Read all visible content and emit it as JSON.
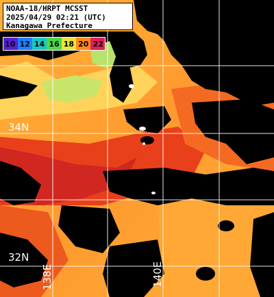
{
  "header": {
    "line1": "NOAA-18/HRPT MCSST",
    "line2": "2025/04/29 02:21 (UTC)",
    "line3": "Kanagawa Prefecture"
  },
  "legend": {
    "ticks": [
      "10",
      "12",
      "14",
      "16",
      "18",
      "20",
      "22"
    ],
    "colors": [
      "#5a1fd0",
      "#1f7fff",
      "#16c8c8",
      "#4cd84c",
      "#e6e63a",
      "#ff8a1a",
      "#e0205a"
    ]
  },
  "grid": {
    "lat_labels": [
      "34N",
      "32N"
    ],
    "lon_labels": [
      "138E",
      "140E"
    ]
  },
  "palette": {
    "land": "#000000",
    "cold": "#b8e36a",
    "cool": "#ffd04a",
    "warm": "#ffa030",
    "hot": "#f25a1e",
    "hotter": "#d83218",
    "grid": "#ffffff"
  }
}
